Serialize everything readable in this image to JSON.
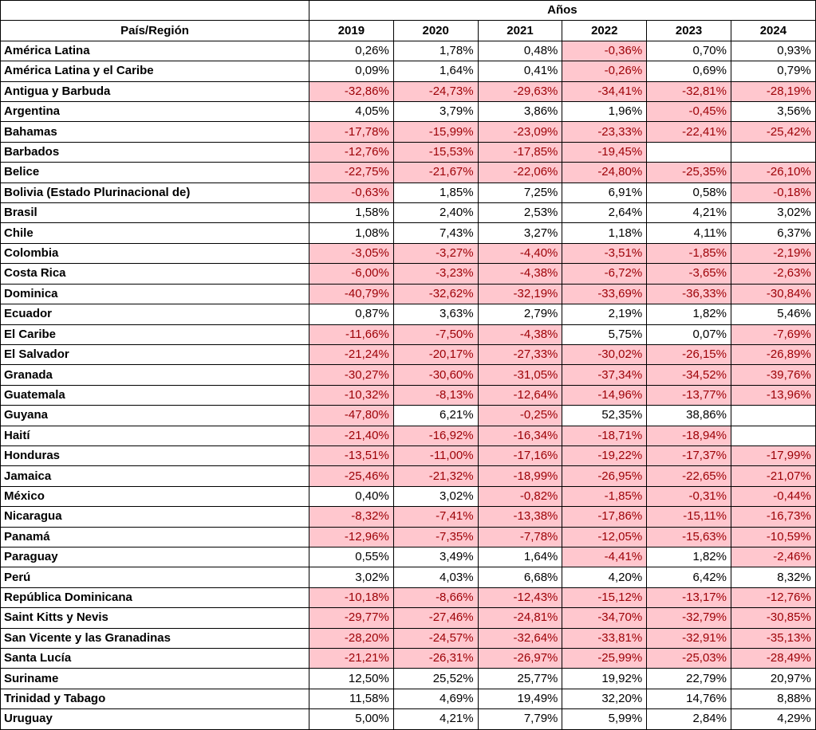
{
  "table": {
    "group_header": "Años",
    "first_header": "País/Región",
    "years": [
      "2019",
      "2020",
      "2021",
      "2022",
      "2023",
      "2024"
    ],
    "rows": [
      {
        "name": "América Latina",
        "values": [
          "0,26%",
          "1,78%",
          "0,48%",
          "-0,36%",
          "0,70%",
          "0,93%"
        ]
      },
      {
        "name": "América Latina y el Caribe",
        "values": [
          "0,09%",
          "1,64%",
          "0,41%",
          "-0,26%",
          "0,69%",
          "0,79%"
        ]
      },
      {
        "name": "Antigua y Barbuda",
        "values": [
          "-32,86%",
          "-24,73%",
          "-29,63%",
          "-34,41%",
          "-32,81%",
          "-28,19%"
        ]
      },
      {
        "name": "Argentina",
        "values": [
          "4,05%",
          "3,79%",
          "3,86%",
          "1,96%",
          "-0,45%",
          "3,56%"
        ]
      },
      {
        "name": "Bahamas",
        "values": [
          "-17,78%",
          "-15,99%",
          "-23,09%",
          "-23,33%",
          "-22,41%",
          "-25,42%"
        ]
      },
      {
        "name": "Barbados",
        "values": [
          "-12,76%",
          "-15,53%",
          "-17,85%",
          "-19,45%",
          "",
          ""
        ]
      },
      {
        "name": "Belice",
        "values": [
          "-22,75%",
          "-21,67%",
          "-22,06%",
          "-24,80%",
          "-25,35%",
          "-26,10%"
        ]
      },
      {
        "name": "Bolivia (Estado Plurinacional de)",
        "values": [
          "-0,63%",
          "1,85%",
          "7,25%",
          "6,91%",
          "0,58%",
          "-0,18%"
        ]
      },
      {
        "name": "Brasil",
        "values": [
          "1,58%",
          "2,40%",
          "2,53%",
          "2,64%",
          "4,21%",
          "3,02%"
        ]
      },
      {
        "name": "Chile",
        "values": [
          "1,08%",
          "7,43%",
          "3,27%",
          "1,18%",
          "4,11%",
          "6,37%"
        ]
      },
      {
        "name": "Colombia",
        "values": [
          "-3,05%",
          "-3,27%",
          "-4,40%",
          "-3,51%",
          "-1,85%",
          "-2,19%"
        ]
      },
      {
        "name": "Costa Rica",
        "values": [
          "-6,00%",
          "-3,23%",
          "-4,38%",
          "-6,72%",
          "-3,65%",
          "-2,63%"
        ]
      },
      {
        "name": "Dominica",
        "values": [
          "-40,79%",
          "-32,62%",
          "-32,19%",
          "-33,69%",
          "-36,33%",
          "-30,84%"
        ]
      },
      {
        "name": "Ecuador",
        "values": [
          "0,87%",
          "3,63%",
          "2,79%",
          "2,19%",
          "1,82%",
          "5,46%"
        ]
      },
      {
        "name": "El Caribe",
        "values": [
          "-11,66%",
          "-7,50%",
          "-4,38%",
          "5,75%",
          "0,07%",
          "-7,69%"
        ]
      },
      {
        "name": "El Salvador",
        "values": [
          "-21,24%",
          "-20,17%",
          "-27,33%",
          "-30,02%",
          "-26,15%",
          "-26,89%"
        ]
      },
      {
        "name": "Granada",
        "values": [
          "-30,27%",
          "-30,60%",
          "-31,05%",
          "-37,34%",
          "-34,52%",
          "-39,76%"
        ]
      },
      {
        "name": "Guatemala",
        "values": [
          "-10,32%",
          "-8,13%",
          "-12,64%",
          "-14,96%",
          "-13,77%",
          "-13,96%"
        ]
      },
      {
        "name": "Guyana",
        "values": [
          "-47,80%",
          "6,21%",
          "-0,25%",
          "52,35%",
          "38,86%",
          ""
        ]
      },
      {
        "name": "Haití",
        "values": [
          "-21,40%",
          "-16,92%",
          "-16,34%",
          "-18,71%",
          "-18,94%",
          ""
        ]
      },
      {
        "name": "Honduras",
        "values": [
          "-13,51%",
          "-11,00%",
          "-17,16%",
          "-19,22%",
          "-17,37%",
          "-17,99%"
        ]
      },
      {
        "name": "Jamaica",
        "values": [
          "-25,46%",
          "-21,32%",
          "-18,99%",
          "-26,95%",
          "-22,65%",
          "-21,07%"
        ]
      },
      {
        "name": "México",
        "values": [
          "0,40%",
          "3,02%",
          "-0,82%",
          "-1,85%",
          "-0,31%",
          "-0,44%"
        ]
      },
      {
        "name": "Nicaragua",
        "values": [
          "-8,32%",
          "-7,41%",
          "-13,38%",
          "-17,86%",
          "-15,11%",
          "-16,73%"
        ]
      },
      {
        "name": "Panamá",
        "values": [
          "-12,96%",
          "-7,35%",
          "-7,78%",
          "-12,05%",
          "-15,63%",
          "-10,59%"
        ]
      },
      {
        "name": "Paraguay",
        "values": [
          "0,55%",
          "3,49%",
          "1,64%",
          "-4,41%",
          "1,82%",
          "-2,46%"
        ]
      },
      {
        "name": "Perú",
        "values": [
          "3,02%",
          "4,03%",
          "6,68%",
          "4,20%",
          "6,42%",
          "8,32%"
        ]
      },
      {
        "name": "República Dominicana",
        "values": [
          "-10,18%",
          "-8,66%",
          "-12,43%",
          "-15,12%",
          "-13,17%",
          "-12,76%"
        ]
      },
      {
        "name": "Saint Kitts y Nevis",
        "values": [
          "-29,77%",
          "-27,46%",
          "-24,81%",
          "-34,70%",
          "-32,79%",
          "-30,85%"
        ]
      },
      {
        "name": "San Vicente y las Granadinas",
        "values": [
          "-28,20%",
          "-24,57%",
          "-32,64%",
          "-33,81%",
          "-32,91%",
          "-35,13%"
        ]
      },
      {
        "name": "Santa Lucía",
        "values": [
          "-21,21%",
          "-26,31%",
          "-26,97%",
          "-25,99%",
          "-25,03%",
          "-28,49%"
        ]
      },
      {
        "name": "Suriname",
        "values": [
          "12,50%",
          "25,52%",
          "25,77%",
          "19,92%",
          "22,79%",
          "20,97%"
        ]
      },
      {
        "name": "Trinidad y Tabago",
        "values": [
          "11,58%",
          "4,69%",
          "19,49%",
          "32,20%",
          "14,76%",
          "8,88%"
        ]
      },
      {
        "name": "Uruguay",
        "values": [
          "5,00%",
          "4,21%",
          "7,79%",
          "5,99%",
          "2,84%",
          "4,29%"
        ]
      }
    ]
  },
  "colors": {
    "negative_fill": "#ffc7ce",
    "negative_text": "#9c0006"
  }
}
